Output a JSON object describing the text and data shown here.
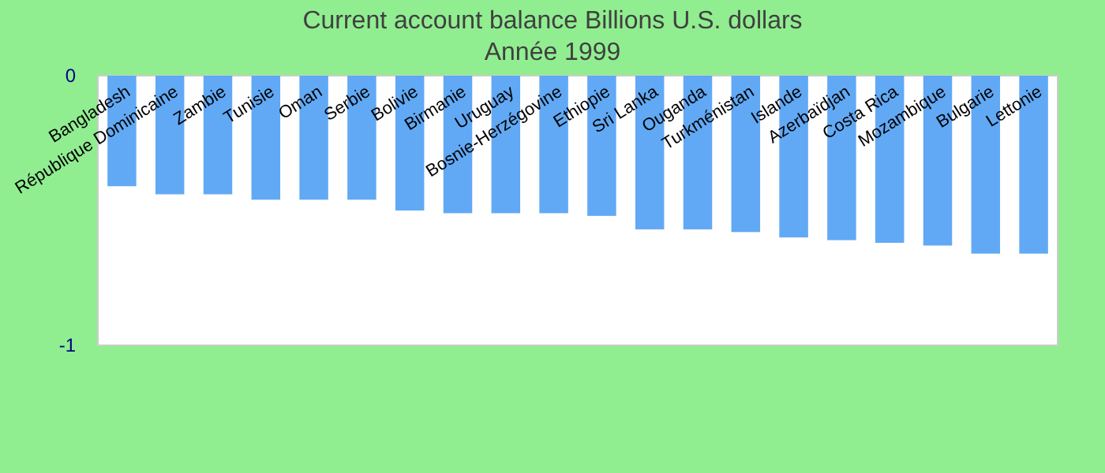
{
  "chart_data": {
    "type": "bar",
    "title": "Current account balance Billions U.S. dollars",
    "subtitle": "Année 1999",
    "categories": [
      "Bangladesh",
      "République Dominicaine",
      "Zambie",
      "Tunisie",
      "Oman",
      "Serbie",
      "Bolivie",
      "Birmanie",
      "Uruguay",
      "Bosnie-Herzégovine",
      "Ethiopie",
      "Sri Lanka",
      "Ouganda",
      "Turkménistan",
      "Islande",
      "Azerbaïdjan",
      "Costa Rica",
      "Mozambique",
      "Bulgarie",
      "Lettonie"
    ],
    "values": [
      -0.41,
      -0.44,
      -0.44,
      -0.46,
      -0.46,
      -0.46,
      -0.5,
      -0.51,
      -0.51,
      -0.51,
      -0.52,
      -0.57,
      -0.57,
      -0.58,
      -0.6,
      -0.61,
      -0.62,
      -0.63,
      -0.66,
      -0.66
    ],
    "color": "#61a9f4",
    "ylim": [
      -1,
      0
    ],
    "yticks": [
      -1,
      0
    ]
  }
}
